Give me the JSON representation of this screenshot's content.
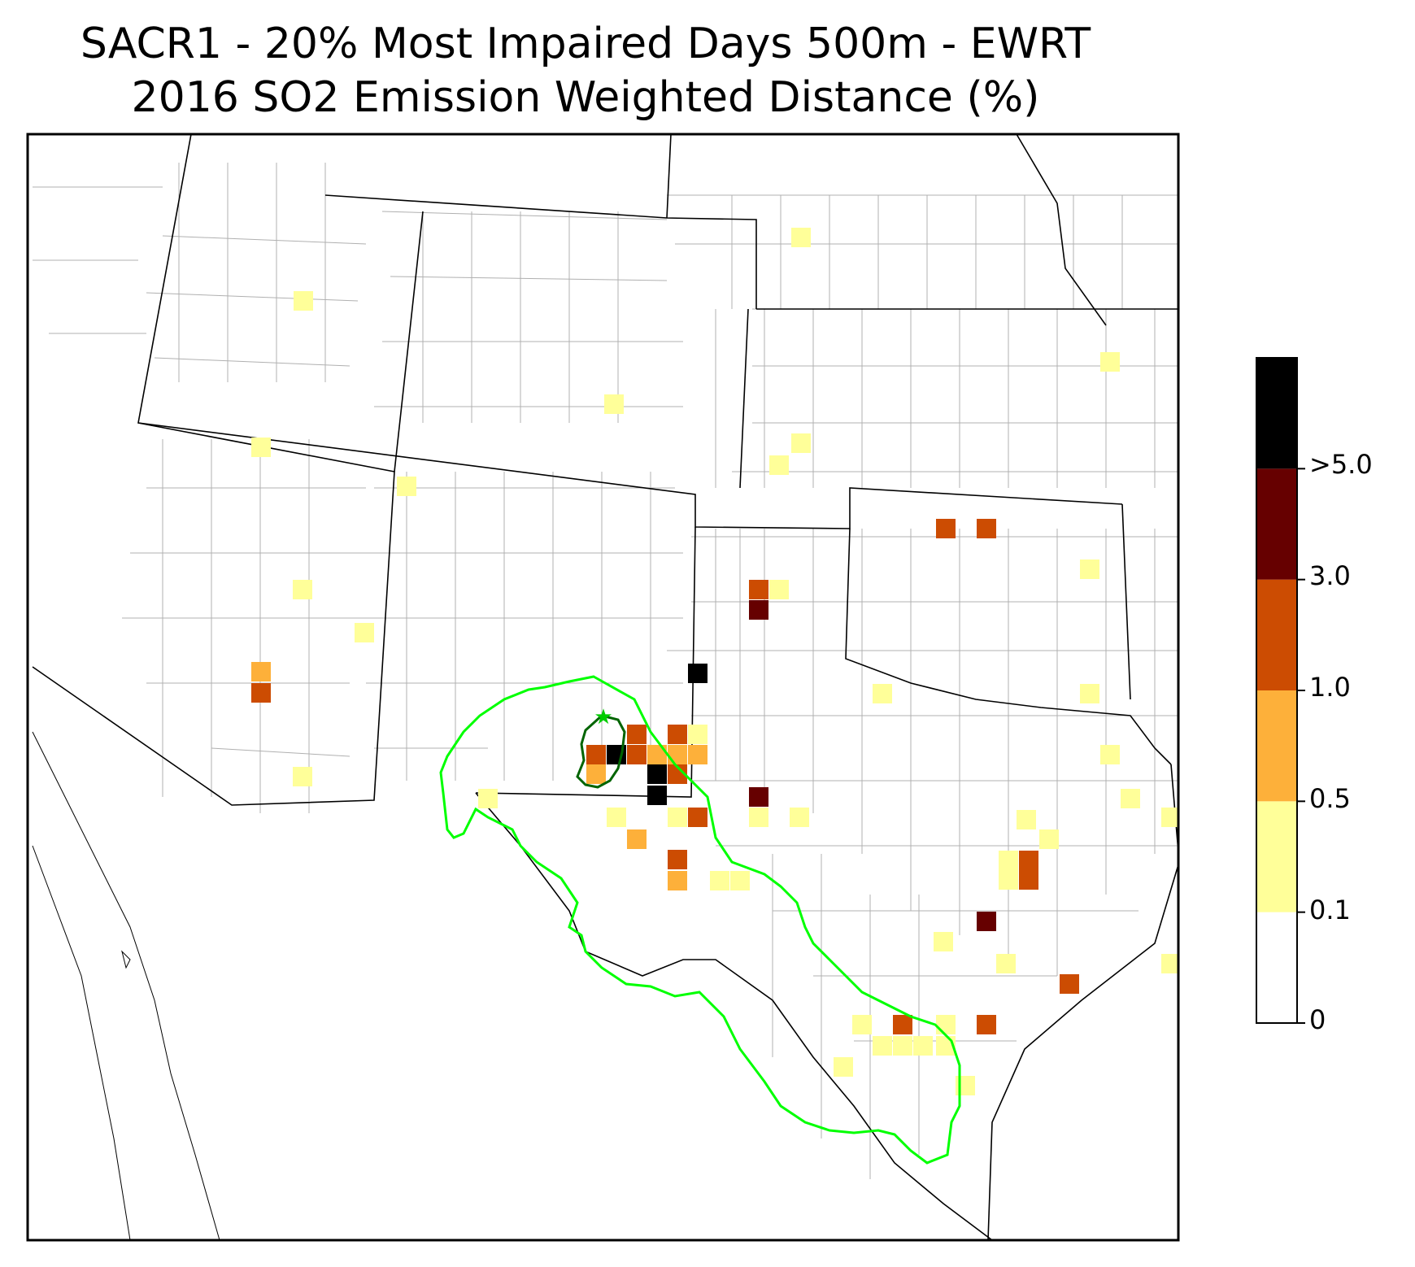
{
  "title_line1": "SACR1 - 20% Most Impaired Days 500m - EWRT",
  "title_line2": "2016 SO2 Emission Weighted Distance (%)",
  "legend": {
    "bins": [
      {
        "from": "0",
        "to": "0.1",
        "color": "#ffffff"
      },
      {
        "from": "0.1",
        "to": "0.5",
        "color": "#ffff99"
      },
      {
        "from": "0.5",
        "to": "1.0",
        "color": "#fdb03a"
      },
      {
        "from": "1.0",
        "to": "3.0",
        "color": "#cc4c02"
      },
      {
        "from": "3.0",
        "to": ">5.0",
        "color": "#660000"
      },
      {
        "from": ">5.0",
        "to": "",
        "color": "#000000"
      }
    ],
    "tick_labels": [
      "0",
      "0.1",
      "0.5",
      "1.0",
      "3.0",
      ">5.0"
    ]
  },
  "map": {
    "marker": "green-star-site",
    "outer_contour_color": "#00ff00",
    "inner_contour_color": "#006400",
    "state_border_color": "#000000",
    "county_border_color": "#aaaaaa"
  }
}
